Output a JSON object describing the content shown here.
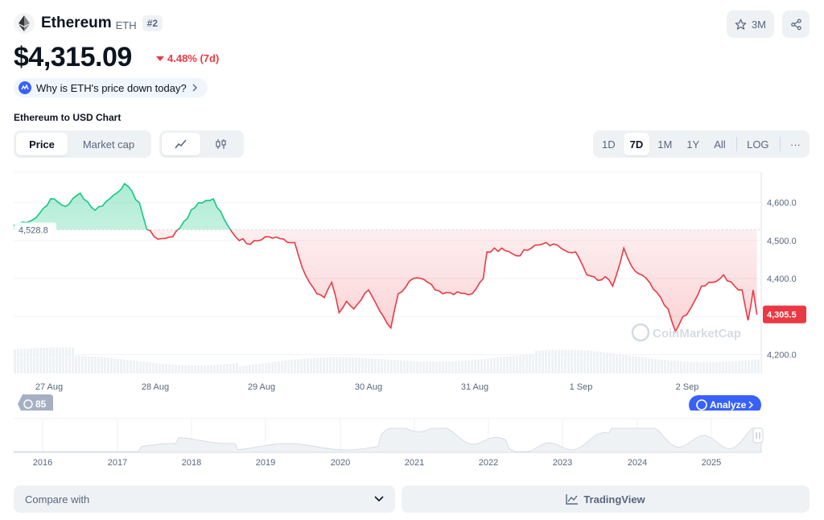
{
  "coin": {
    "name": "Ethereum",
    "symbol": "ETH",
    "rank": "#2",
    "price": "$4,315.09",
    "change": "4.48% (7d)",
    "why_text": "Why is ETH's price down today?"
  },
  "actions": {
    "watchlist_count": "3M"
  },
  "chart_section": {
    "title": "Ethereum to USD Chart",
    "type_tabs": [
      "Price",
      "Market cap"
    ],
    "range_tabs": [
      "1D",
      "7D",
      "1M",
      "1Y",
      "All",
      "LOG"
    ],
    "active_range": "7D",
    "more_label": "···"
  },
  "chart_data": {
    "type": "line",
    "x_ticks": [
      "27 Aug",
      "28 Aug",
      "29 Aug",
      "30 Aug",
      "31 Aug",
      "1 Sep",
      "2 Sep"
    ],
    "y_ticks": [
      "4,600.0",
      "4,500.0",
      "4,400.0",
      "4,200.0"
    ],
    "ylim": [
      4150,
      4680
    ],
    "baseline_label": "4,528.8",
    "baseline": 4528.8,
    "current_label": "4,305.5",
    "current": 4305.5,
    "anchors": [
      [
        0.0,
        4540
      ],
      [
        0.03,
        4560
      ],
      [
        0.05,
        4610
      ],
      [
        0.07,
        4590
      ],
      [
        0.09,
        4625
      ],
      [
        0.11,
        4580
      ],
      [
        0.13,
        4610
      ],
      [
        0.15,
        4650
      ],
      [
        0.17,
        4600
      ],
      [
        0.18,
        4530
      ],
      [
        0.19,
        4510
      ],
      [
        0.2,
        4505
      ],
      [
        0.215,
        4510
      ],
      [
        0.23,
        4550
      ],
      [
        0.25,
        4600
      ],
      [
        0.27,
        4610
      ],
      [
        0.285,
        4555
      ],
      [
        0.3,
        4510
      ],
      [
        0.32,
        4490
      ],
      [
        0.34,
        4510
      ],
      [
        0.36,
        4505
      ],
      [
        0.38,
        4495
      ],
      [
        0.39,
        4430
      ],
      [
        0.41,
        4360
      ],
      [
        0.42,
        4350
      ],
      [
        0.43,
        4390
      ],
      [
        0.44,
        4310
      ],
      [
        0.45,
        4340
      ],
      [
        0.46,
        4320
      ],
      [
        0.48,
        4370
      ],
      [
        0.5,
        4300
      ],
      [
        0.51,
        4270
      ],
      [
        0.52,
        4360
      ],
      [
        0.54,
        4400
      ],
      [
        0.56,
        4390
      ],
      [
        0.57,
        4370
      ],
      [
        0.58,
        4360
      ],
      [
        0.6,
        4365
      ],
      [
        0.62,
        4360
      ],
      [
        0.635,
        4400
      ],
      [
        0.64,
        4470
      ],
      [
        0.66,
        4480
      ],
      [
        0.68,
        4460
      ],
      [
        0.7,
        4480
      ],
      [
        0.72,
        4495
      ],
      [
        0.74,
        4480
      ],
      [
        0.76,
        4470
      ],
      [
        0.775,
        4410
      ],
      [
        0.79,
        4395
      ],
      [
        0.8,
        4405
      ],
      [
        0.81,
        4380
      ],
      [
        0.825,
        4480
      ],
      [
        0.84,
        4420
      ],
      [
        0.86,
        4390
      ],
      [
        0.875,
        4350
      ],
      [
        0.885,
        4320
      ],
      [
        0.895,
        4260
      ],
      [
        0.905,
        4300
      ],
      [
        0.915,
        4320
      ],
      [
        0.93,
        4380
      ],
      [
        0.945,
        4390
      ],
      [
        0.96,
        4410
      ],
      [
        0.975,
        4380
      ],
      [
        0.985,
        4370
      ],
      [
        0.993,
        4290
      ],
      [
        1.0,
        4370
      ],
      [
        1.005,
        4305
      ]
    ],
    "analyze_label": "Analyze",
    "history_label": "85",
    "years": [
      "2016",
      "2017",
      "2018",
      "2019",
      "2020",
      "2021",
      "2022",
      "2023",
      "2024",
      "2025"
    ],
    "watermark": "CoinMarketCap"
  },
  "bottom": {
    "compare_label": "Compare with",
    "tradingview_label": "TradingView"
  },
  "colors": {
    "green": "#16c784",
    "red": "#ea3943",
    "accent": "#3861fb",
    "grid": "#eff2f5",
    "muted": "#58667e"
  }
}
